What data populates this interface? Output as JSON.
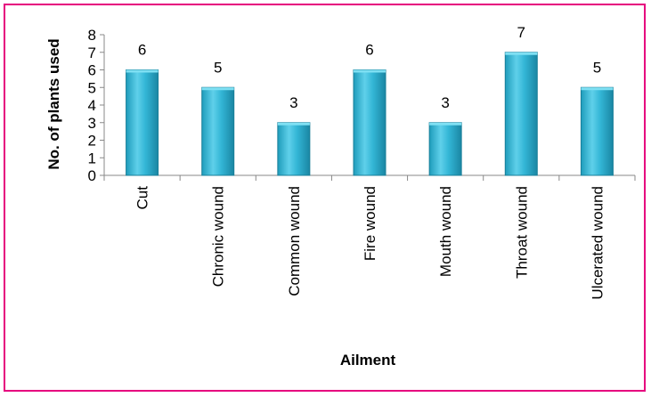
{
  "chart_data": {
    "type": "bar",
    "title": "",
    "xlabel": "Ailment",
    "ylabel": "No. of plants used",
    "categories": [
      "Cut",
      "Chronic wound",
      "Common wound",
      "Fire wound",
      "Mouth wound",
      "Throat wound",
      "Ulcerated wound"
    ],
    "values": [
      6,
      5,
      3,
      6,
      3,
      7,
      5
    ],
    "ylim": [
      0,
      8
    ],
    "yticks": [
      0,
      1,
      2,
      3,
      4,
      5,
      6,
      7,
      8
    ],
    "grid": false,
    "legend": "none",
    "data_labels": true,
    "bar_color": "#2fb3d2",
    "bar_edge_color": "#1a7f99",
    "border_color": "#e6007e"
  }
}
